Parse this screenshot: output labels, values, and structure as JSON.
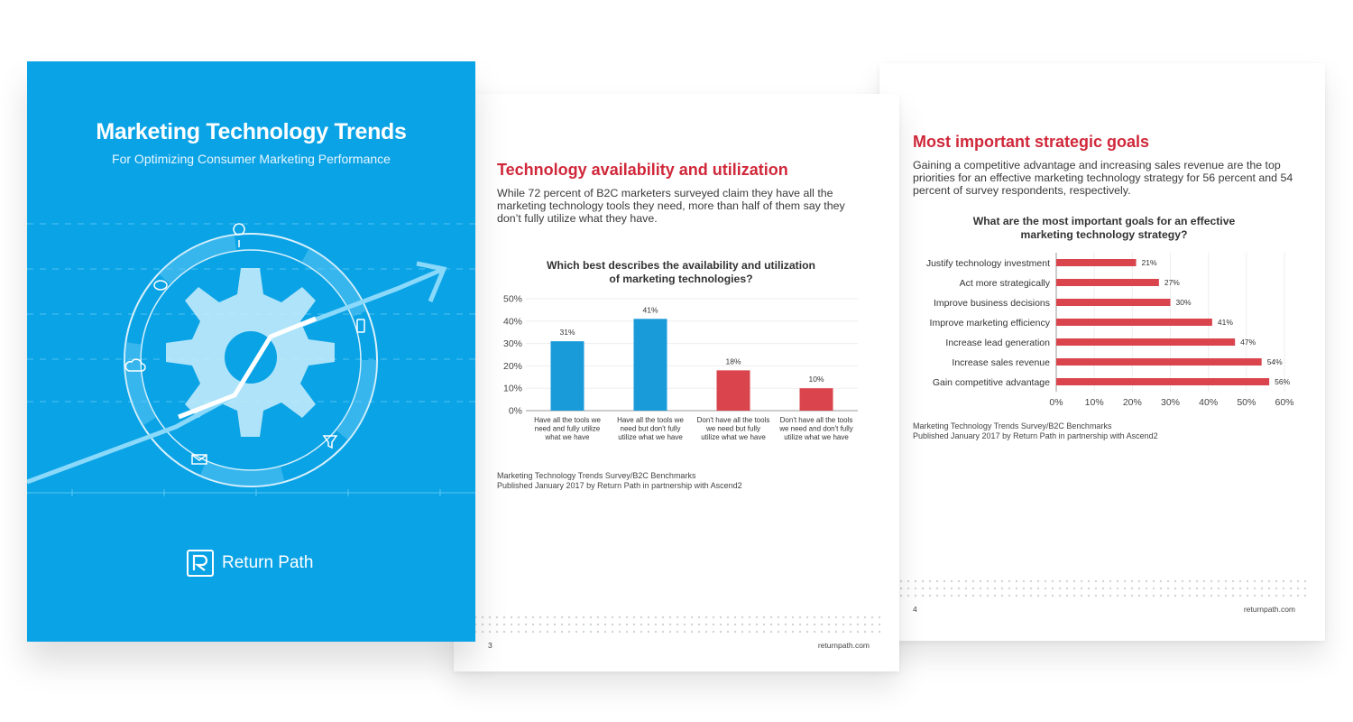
{
  "cover": {
    "title": "Marketing Technology Trends",
    "subtitle": "For Optimizing Consumer Marketing Performance",
    "brand": "Return Path",
    "background": "#0aa3e6"
  },
  "page3": {
    "heading": "Technology availability and utilization",
    "paragraph": "While 72 percent of B2C marketers surveyed claim they have all the marketing technology tools they need, more than half of them say they don’t fully utilize what they have.",
    "chart_title_lines": [
      "Which best describes the availability and utilization",
      "of marketing technologies?"
    ],
    "source_lines": [
      "Marketing Technology Trends Survey/B2C Benchmarks",
      "Published January 2017 by Return Path in partnership with Ascend2"
    ],
    "page_number": "3",
    "site": "returnpath.com"
  },
  "page4": {
    "heading": "Most important strategic goals",
    "paragraph": "Gaining a competitive advantage and increasing sales revenue are the top priorities for an effective marketing technology strategy for 56 percent and 54 percent of survey respondents, respectively.",
    "chart_title_lines": [
      "What are the most important goals for an effective",
      "marketing technology strategy?"
    ],
    "source_lines": [
      "Marketing Technology Trends Survey/B2C Benchmarks",
      "Published January 2017 by Return Path in partnership with Ascend2"
    ],
    "page_number": "4",
    "site": "returnpath.com"
  },
  "colors": {
    "accent_red": "#d0283a",
    "bar_blue": "#1a9bd9",
    "bar_red": "#d9444d"
  },
  "chart_data": [
    {
      "type": "bar",
      "orientation": "vertical",
      "categories": [
        [
          "Have all the tools we",
          "need and fully utilize",
          "what we have"
        ],
        [
          "Have all the tools we",
          "need but don't fully",
          "utilize what we have"
        ],
        [
          "Don't have all the tools",
          "we need but fully",
          "utilize what we have"
        ],
        [
          "Don't have all the tools",
          "we need and don't fully",
          "utilize what we have"
        ]
      ],
      "values": [
        31,
        41,
        18,
        10
      ],
      "value_labels": [
        "31%",
        "41%",
        "18%",
        "10%"
      ],
      "bar_colors": [
        "#1a9bd9",
        "#1a9bd9",
        "#d9444d",
        "#d9444d"
      ],
      "yticks": [
        "0%",
        "10%",
        "20%",
        "30%",
        "40%",
        "50%"
      ],
      "ylim": [
        0,
        50
      ]
    },
    {
      "type": "bar",
      "orientation": "horizontal",
      "categories": [
        "Justify technology investment",
        "Act more strategically",
        "Improve business decisions",
        "Improve marketing efficiency",
        "Increase lead generation",
        "Increase sales revenue",
        "Gain competitive advantage"
      ],
      "values": [
        21,
        27,
        30,
        41,
        47,
        54,
        56
      ],
      "value_labels": [
        "21%",
        "27%",
        "30%",
        "41%",
        "47%",
        "54%",
        "56%"
      ],
      "bar_color": "#d9444d",
      "xticks": [
        "0%",
        "10%",
        "20%",
        "30%",
        "40%",
        "50%",
        "60%"
      ],
      "xlim": [
        0,
        60
      ]
    }
  ]
}
